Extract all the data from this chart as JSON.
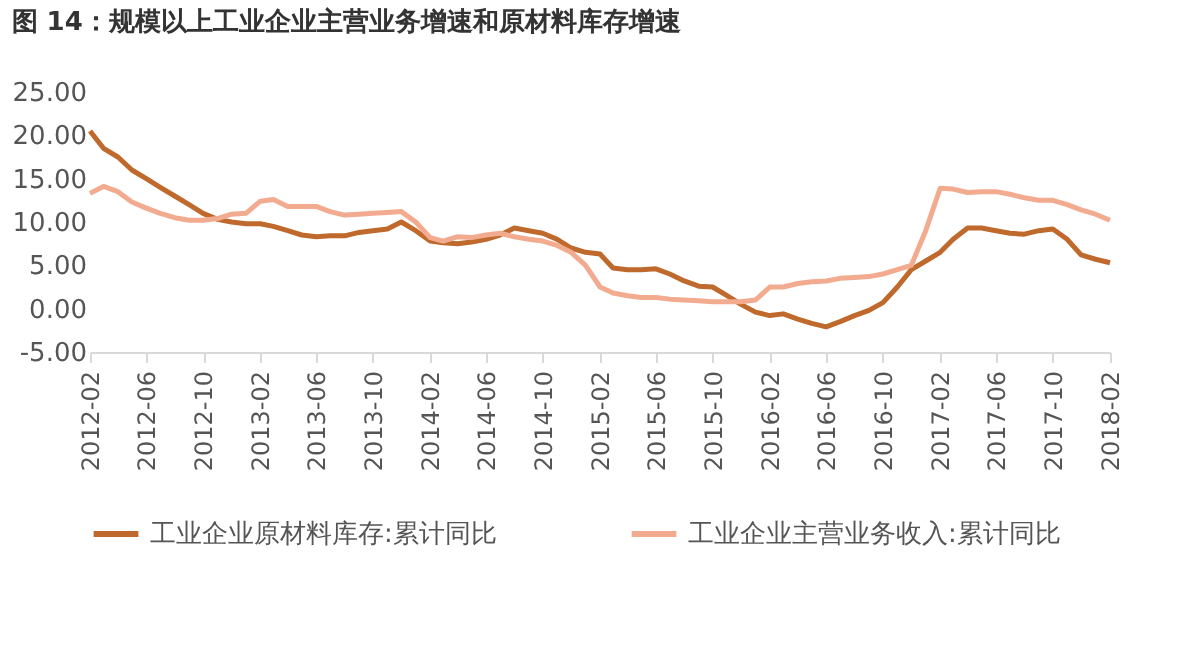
{
  "chart_data": {
    "type": "line",
    "title": "图 14：规模以上工业企业主营业务增速和原材料库存增速",
    "x": [
      "2012-02",
      "2012-03",
      "2012-04",
      "2012-05",
      "2012-06",
      "2012-07",
      "2012-08",
      "2012-09",
      "2012-10",
      "2012-11",
      "2012-12",
      "2013-01",
      "2013-02",
      "2013-03",
      "2013-04",
      "2013-05",
      "2013-06",
      "2013-07",
      "2013-08",
      "2013-09",
      "2013-10",
      "2013-11",
      "2013-12",
      "2014-01",
      "2014-02",
      "2014-03",
      "2014-04",
      "2014-05",
      "2014-06",
      "2014-07",
      "2014-08",
      "2014-09",
      "2014-10",
      "2014-11",
      "2014-12",
      "2015-01",
      "2015-02",
      "2015-03",
      "2015-04",
      "2015-05",
      "2015-06",
      "2015-07",
      "2015-08",
      "2015-09",
      "2015-10",
      "2015-11",
      "2015-12",
      "2016-01",
      "2016-02",
      "2016-03",
      "2016-04",
      "2016-05",
      "2016-06",
      "2016-07",
      "2016-08",
      "2016-09",
      "2016-10",
      "2016-11",
      "2016-12",
      "2017-01",
      "2017-02",
      "2017-03",
      "2017-04",
      "2017-05",
      "2017-06",
      "2017-07",
      "2017-08",
      "2017-09",
      "2017-10",
      "2017-11",
      "2017-12",
      "2018-01",
      "2018-02"
    ],
    "series": [
      {
        "name": "工业企业原材料库存:累计同比",
        "color": "#c0692c",
        "values": [
          20.5,
          18.5,
          17.5,
          16,
          15,
          14,
          13,
          12,
          11,
          10.3,
          10,
          9.8,
          9.8,
          9.5,
          9,
          8.5,
          8.3,
          8.4,
          8.4,
          8.8,
          9,
          9.2,
          10,
          9,
          7.8,
          7.6,
          7.5,
          7.7,
          8,
          8.5,
          9.3,
          9,
          8.7,
          8,
          7,
          6.5,
          6.3,
          4.7,
          4.5,
          4.5,
          4.6,
          4,
          3.2,
          2.6,
          2.5,
          1.5,
          0.5,
          -0.4,
          -0.8,
          -0.6,
          -1.2,
          -1.7,
          -2.1,
          -1.5,
          -0.8,
          -0.2,
          0.7,
          2.5,
          4.5,
          5.5,
          6.5,
          8,
          9.3,
          9.3,
          9,
          8.7,
          8.6,
          9,
          9.2,
          8,
          6.2,
          5.7,
          5.3
        ]
      },
      {
        "name": "工业企业主营业务收入:累计同比",
        "color": "#f2ab8f",
        "values": [
          13.3,
          14.1,
          13.5,
          12.3,
          11.6,
          11,
          10.5,
          10.2,
          10.2,
          10.4,
          10.9,
          11,
          12.4,
          12.6,
          11.8,
          11.8,
          11.8,
          11.2,
          10.8,
          10.9,
          11,
          11.1,
          11.2,
          10,
          8.2,
          7.8,
          8.3,
          8.2,
          8.5,
          8.7,
          8.3,
          8,
          7.8,
          7.3,
          6.5,
          5,
          2.5,
          1.8,
          1.5,
          1.3,
          1.3,
          1.1,
          1,
          0.9,
          0.8,
          0.8,
          0.8,
          1,
          2.5,
          2.5,
          2.9,
          3.1,
          3.2,
          3.5,
          3.6,
          3.7,
          4,
          4.5,
          5,
          9,
          13.9,
          13.8,
          13.4,
          13.5,
          13.5,
          13.2,
          12.8,
          12.5,
          12.5,
          12,
          11.4,
          10.9,
          10.2
        ]
      }
    ],
    "xlim": [
      "2012-02",
      "2018-02"
    ],
    "xticks": [
      "2012-02",
      "2012-06",
      "2012-10",
      "2013-02",
      "2013-06",
      "2013-10",
      "2014-02",
      "2014-06",
      "2014-10",
      "2015-02",
      "2015-06",
      "2015-10",
      "2016-02",
      "2016-06",
      "2016-10",
      "2017-02",
      "2017-06",
      "2017-10",
      "2018-02"
    ],
    "ylim": [
      -5,
      25
    ],
    "yticks": [
      {
        "value": -5,
        "label": "-5.00"
      },
      {
        "value": 0,
        "label": "0.00"
      },
      {
        "value": 5,
        "label": "5.00"
      },
      {
        "value": 10,
        "label": "10.00"
      },
      {
        "value": 15,
        "label": "15.00"
      },
      {
        "value": 20,
        "label": "20.00"
      },
      {
        "value": 25,
        "label": "25.00"
      }
    ],
    "grid": false,
    "legend": "bottom",
    "marker": "none",
    "line_style": "solid"
  }
}
